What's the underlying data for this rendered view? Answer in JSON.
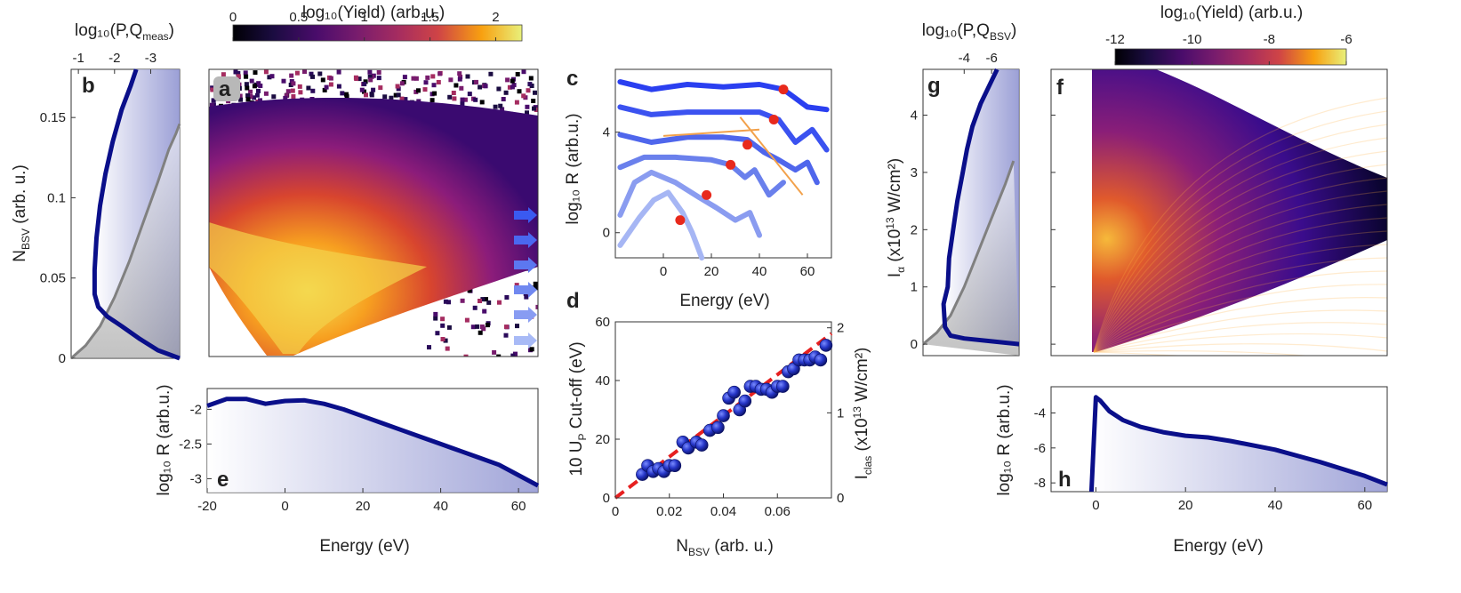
{
  "figure": {
    "colors": {
      "navy": "#0a0f8a",
      "gray": "#808080",
      "red": "#e8291c",
      "orange": "#f2a14b",
      "dashed": "#e62020",
      "marker": "#2636c8"
    },
    "panel_labels": {
      "a": "a",
      "b": "b",
      "c": "c",
      "d": "d",
      "e": "e",
      "f": "f",
      "g": "g",
      "h": "h"
    }
  },
  "chart_data": [
    {
      "id": "a",
      "type": "heatmap",
      "title": "log₁₀(Yield) (arb.u.)",
      "colorbar": {
        "range": [
          0,
          2.2
        ],
        "ticks": [
          "0",
          "0.5",
          "1",
          "1.5",
          "2"
        ]
      },
      "xlim": [
        -20,
        65
      ],
      "ylim": [
        0,
        0.18
      ],
      "description_values": {
        "shape": "V-shaped distribution with apex near Energy 0 eV at N_BSV 0",
        "cutoff_arrows": 6
      }
    },
    {
      "id": "b",
      "type": "line",
      "top_label": "log₁₀(P,Q",
      "top_label_sub": "meas",
      "top_label_end": ")",
      "xticks": [
        "-1",
        "-2",
        "-3"
      ],
      "xlim": [
        -0.8,
        -3.8
      ],
      "ylabel": "N",
      "ylabel_sub": "BSV",
      "ylabel_end": " (arb. u.)",
      "ylim": [
        0,
        0.18
      ],
      "yticks": [
        "0",
        "0.05",
        "0.1",
        "0.15"
      ],
      "series": [
        {
          "name": "P",
          "color": "#0a0f8a",
          "x": [
            -3.8,
            -3.2,
            -2.7,
            -2.2,
            -1.8,
            -1.55,
            -1.45,
            -1.45,
            -1.5,
            -1.6,
            -1.75,
            -1.95,
            -2.2,
            -2.45,
            -2.6
          ],
          "y": [
            0,
            0.005,
            0.012,
            0.02,
            0.026,
            0.032,
            0.04,
            0.055,
            0.075,
            0.095,
            0.115,
            0.135,
            0.155,
            0.17,
            0.18
          ]
        },
        {
          "name": "Q",
          "color": "#808080",
          "x": [
            -0.8,
            -1.2,
            -1.6,
            -2.0,
            -2.4,
            -2.8,
            -3.2,
            -3.5,
            -3.7,
            -3.8
          ],
          "y": [
            0,
            0.008,
            0.02,
            0.038,
            0.06,
            0.085,
            0.11,
            0.13,
            0.14,
            0.146
          ]
        }
      ]
    },
    {
      "id": "c",
      "type": "line",
      "xlabel": "Energy (eV)",
      "xticks": [
        "0",
        "20",
        "40",
        "60"
      ],
      "xlim": [
        -20,
        70
      ],
      "ylabel": "log₁₀ R  (arb.u.)",
      "yticks": [
        "0",
        "4"
      ],
      "ylim": [
        -1,
        6.5
      ],
      "series": [
        {
          "name": "c1",
          "color": "#2a3ff0",
          "x": [
            -18,
            -5,
            10,
            25,
            40,
            50,
            60,
            68
          ],
          "y": [
            6.0,
            5.7,
            5.9,
            5.8,
            5.9,
            5.7,
            5.0,
            4.9
          ]
        },
        {
          "name": "c2",
          "color": "#3b52f0",
          "x": [
            -18,
            -5,
            10,
            25,
            40,
            48,
            55,
            62,
            68
          ],
          "y": [
            5.0,
            4.7,
            4.8,
            4.8,
            4.8,
            4.5,
            3.6,
            4.1,
            3.3
          ]
        },
        {
          "name": "c3",
          "color": "#4f66ec",
          "x": [
            -18,
            -5,
            10,
            25,
            35,
            42,
            48,
            55,
            60,
            64
          ],
          "y": [
            3.9,
            3.6,
            3.8,
            3.8,
            3.7,
            3.2,
            2.9,
            2.5,
            2.8,
            2.0
          ]
        },
        {
          "name": "c4",
          "color": "#6a80ec",
          "x": [
            -18,
            -8,
            5,
            20,
            28,
            34,
            38,
            44,
            50
          ],
          "y": [
            2.6,
            3.0,
            3.0,
            2.9,
            2.7,
            2.2,
            2.5,
            1.5,
            2.0
          ]
        },
        {
          "name": "c5",
          "color": "#8a9cf0",
          "x": [
            -18,
            -12,
            -5,
            5,
            15,
            22,
            30,
            36,
            40
          ],
          "y": [
            0.7,
            2.0,
            2.4,
            2.0,
            1.4,
            1.0,
            0.5,
            0.8,
            -0.1
          ]
        },
        {
          "name": "c6",
          "color": "#a6b6f4",
          "x": [
            -18,
            -10,
            -4,
            2,
            8,
            12,
            16
          ],
          "y": [
            -0.5,
            0.6,
            1.3,
            1.6,
            0.8,
            0.0,
            -1.0
          ]
        }
      ],
      "cutoffs": {
        "x": [
          50,
          46,
          35,
          28,
          18,
          7
        ],
        "y": [
          5.7,
          4.5,
          3.5,
          2.7,
          1.5,
          0.5
        ]
      },
      "fit_lines": [
        {
          "x": [
            0,
            40
          ],
          "y": [
            3.85,
            4.1
          ]
        },
        {
          "x": [
            32,
            58
          ],
          "y": [
            4.6,
            1.5
          ]
        }
      ]
    },
    {
      "id": "d",
      "type": "scatter",
      "xlabel": "N",
      "xlabel_sub": "BSV",
      "xlabel_end": " (arb. u.)",
      "xticks": [
        "0",
        "0.02",
        "0.04",
        "0.06"
      ],
      "xlim": [
        0,
        0.08
      ],
      "ylabel": "10 U",
      "ylabel_sub": "P",
      "ylabel_end": " Cut-off  (eV)",
      "yticks": [
        "0",
        "20",
        "40",
        "60"
      ],
      "ylim": [
        0,
        60
      ],
      "y2label": "I",
      "y2label_sub": "clas",
      "y2label_mid": "  (x10",
      "y2label_sup": "13",
      "y2label_end": " W/cm²)",
      "y2ticks": [
        "0",
        "1",
        "2"
      ],
      "x": [
        0.01,
        0.012,
        0.014,
        0.016,
        0.018,
        0.02,
        0.022,
        0.025,
        0.027,
        0.03,
        0.032,
        0.035,
        0.038,
        0.04,
        0.042,
        0.044,
        0.046,
        0.048,
        0.05,
        0.052,
        0.054,
        0.056,
        0.058,
        0.06,
        0.062,
        0.064,
        0.066,
        0.068,
        0.07,
        0.072,
        0.074,
        0.076,
        0.078
      ],
      "y": [
        8,
        11,
        9,
        10,
        9,
        11,
        11,
        19,
        17,
        19,
        18,
        23,
        24,
        28,
        34,
        36,
        30,
        33,
        38,
        38,
        37,
        37,
        36,
        38,
        38,
        43,
        44,
        47,
        47,
        47,
        48,
        47,
        52
      ],
      "fit": {
        "x": [
          0,
          0.08
        ],
        "y": [
          0,
          56
        ]
      }
    },
    {
      "id": "e",
      "type": "line",
      "xlabel": "Energy (eV)",
      "xticks": [
        "-20",
        "0",
        "20",
        "40",
        "60"
      ],
      "xlim": [
        -20,
        65
      ],
      "ylabel": "log₁₀ R  (arb.u.)",
      "yticks": [
        "-2",
        "-2.5",
        "-3"
      ],
      "ylim": [
        -3.2,
        -1.7
      ],
      "series": [
        {
          "name": "R",
          "color": "#0a0f8a",
          "x": [
            -20,
            -15,
            -10,
            -5,
            0,
            5,
            10,
            15,
            20,
            25,
            30,
            35,
            40,
            45,
            50,
            55,
            60,
            65
          ],
          "y": [
            -1.95,
            -1.85,
            -1.85,
            -1.92,
            -1.88,
            -1.87,
            -1.92,
            -2.0,
            -2.1,
            -2.2,
            -2.3,
            -2.4,
            -2.5,
            -2.6,
            -2.7,
            -2.8,
            -2.95,
            -3.1
          ]
        }
      ]
    },
    {
      "id": "f",
      "type": "heatmap",
      "title": "log₁₀(Yield) (arb.u.)",
      "colorbar": {
        "range": [
          -12,
          -6
        ],
        "ticks": [
          "-12",
          "-10",
          "-8",
          "-6"
        ]
      },
      "xlim": [
        -10,
        65
      ],
      "ylim": [
        -0.2,
        4.8
      ],
      "description_values": {
        "shape": "triangular region opening from Energy 0 eV with interference fringes"
      }
    },
    {
      "id": "g",
      "type": "line",
      "top_label": "log₁₀(P,Q",
      "top_label_sub": "BSV",
      "top_label_end": ")",
      "xticks": [
        "-4",
        "-6"
      ],
      "xlim": [
        -1,
        -8
      ],
      "ylabel": "I",
      "ylabel_sub": "α",
      "ylabel_mid": "  (x10",
      "ylabel_sup": "13",
      "ylabel_end": " W/cm²)",
      "ylim": [
        -0.2,
        4.8
      ],
      "yticks": [
        "0",
        "1",
        "2",
        "3",
        "4"
      ],
      "series": [
        {
          "name": "P",
          "color": "#0a0f8a",
          "x": [
            -8,
            -6,
            -4,
            -3,
            -2.6,
            -2.5,
            -2.8,
            -2.9,
            -3.2,
            -3.5,
            -3.9,
            -4.2,
            -4.6,
            -5.2,
            -6.0,
            -6.4
          ],
          "y": [
            0,
            0.05,
            0.1,
            0.15,
            0.3,
            0.7,
            1.0,
            1.5,
            2.0,
            2.5,
            3.0,
            3.4,
            3.8,
            4.2,
            4.6,
            4.8
          ]
        },
        {
          "name": "Q",
          "color": "#808080",
          "x": [
            -1,
            -2,
            -3,
            -4,
            -5,
            -6,
            -7,
            -7.6
          ],
          "y": [
            0,
            0.2,
            0.5,
            1.0,
            1.6,
            2.2,
            2.8,
            3.2
          ]
        }
      ]
    },
    {
      "id": "h",
      "type": "line",
      "xlabel": "Energy (eV)",
      "xticks": [
        "0",
        "20",
        "40",
        "60"
      ],
      "xlim": [
        -10,
        65
      ],
      "ylabel": "log₁₀ R  (arb.u.)",
      "yticks": [
        "-4",
        "-6",
        "-8"
      ],
      "ylim": [
        -8.5,
        -2.5
      ],
      "series": [
        {
          "name": "R",
          "color": "#0a0f8a",
          "x": [
            -1,
            0,
            1,
            3,
            6,
            10,
            15,
            20,
            25,
            30,
            40,
            50,
            60,
            65
          ],
          "y": [
            -8.5,
            -3.1,
            -3.3,
            -3.9,
            -4.4,
            -4.8,
            -5.1,
            -5.3,
            -5.4,
            -5.6,
            -6.1,
            -6.8,
            -7.6,
            -8.1
          ]
        }
      ]
    }
  ]
}
